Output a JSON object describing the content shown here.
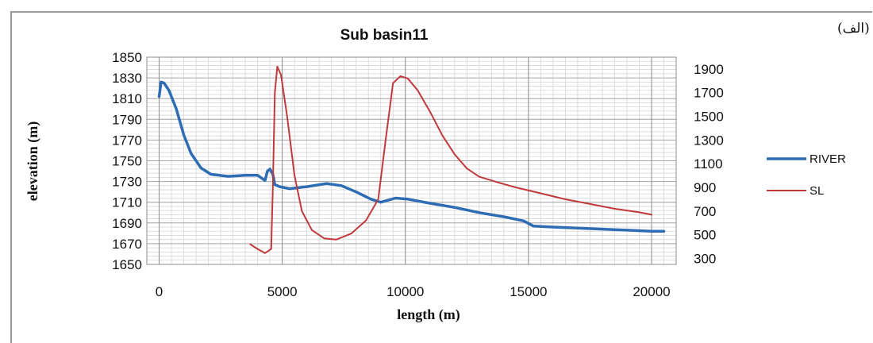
{
  "corner_label": "(الف)",
  "chart_data": {
    "type": "line",
    "title": "Sub basin11",
    "xlabel": "length (m)",
    "ylabel": "elevation (m)",
    "x_ticks": [
      0,
      5000,
      10000,
      15000,
      20000
    ],
    "xlim": [
      -500,
      21000
    ],
    "ylim": [
      1650,
      1850
    ],
    "y_ticks": [
      1650,
      1670,
      1690,
      1710,
      1730,
      1750,
      1770,
      1790,
      1810,
      1830,
      1850
    ],
    "y2lim": [
      250,
      2000
    ],
    "y2_ticks": [
      300,
      500,
      700,
      900,
      1100,
      1300,
      1500,
      1700,
      1900
    ],
    "grid": true,
    "legend": "right",
    "series": [
      {
        "name": "RIVER",
        "axis": "left",
        "color": "#2e6db4",
        "points": [
          [
            0,
            1812
          ],
          [
            80,
            1826
          ],
          [
            200,
            1825
          ],
          [
            400,
            1818
          ],
          [
            700,
            1800
          ],
          [
            1000,
            1775
          ],
          [
            1300,
            1757
          ],
          [
            1700,
            1743
          ],
          [
            2100,
            1737
          ],
          [
            2800,
            1735
          ],
          [
            3500,
            1736
          ],
          [
            4000,
            1736
          ],
          [
            4300,
            1731
          ],
          [
            4400,
            1740
          ],
          [
            4500,
            1742
          ],
          [
            4620,
            1737
          ],
          [
            4700,
            1727
          ],
          [
            4900,
            1725
          ],
          [
            5300,
            1723
          ],
          [
            6000,
            1725
          ],
          [
            6800,
            1728
          ],
          [
            7400,
            1726
          ],
          [
            8000,
            1720
          ],
          [
            8600,
            1713
          ],
          [
            9000,
            1710
          ],
          [
            9600,
            1714
          ],
          [
            10100,
            1713
          ],
          [
            11000,
            1709
          ],
          [
            12000,
            1705
          ],
          [
            13000,
            1700
          ],
          [
            14000,
            1696
          ],
          [
            14800,
            1692
          ],
          [
            15200,
            1687
          ],
          [
            16000,
            1686
          ],
          [
            17000,
            1685
          ],
          [
            18000,
            1684
          ],
          [
            19000,
            1683
          ],
          [
            20000,
            1682
          ],
          [
            20500,
            1682
          ]
        ]
      },
      {
        "name": "SL",
        "axis": "right",
        "color": "#c0393b",
        "points": [
          [
            3700,
            420
          ],
          [
            4000,
            380
          ],
          [
            4300,
            345
          ],
          [
            4550,
            380
          ],
          [
            4620,
            900
          ],
          [
            4700,
            1700
          ],
          [
            4800,
            1920
          ],
          [
            4950,
            1850
          ],
          [
            5200,
            1500
          ],
          [
            5500,
            1000
          ],
          [
            5800,
            700
          ],
          [
            6200,
            540
          ],
          [
            6700,
            470
          ],
          [
            7200,
            460
          ],
          [
            7800,
            510
          ],
          [
            8400,
            620
          ],
          [
            8900,
            800
          ],
          [
            9200,
            1300
          ],
          [
            9500,
            1780
          ],
          [
            9800,
            1840
          ],
          [
            10100,
            1820
          ],
          [
            10500,
            1720
          ],
          [
            11000,
            1540
          ],
          [
            11500,
            1340
          ],
          [
            12000,
            1180
          ],
          [
            12500,
            1060
          ],
          [
            13000,
            990
          ],
          [
            13800,
            940
          ],
          [
            14500,
            900
          ],
          [
            15500,
            850
          ],
          [
            16500,
            800
          ],
          [
            17500,
            760
          ],
          [
            18500,
            720
          ],
          [
            19500,
            690
          ],
          [
            20000,
            670
          ]
        ]
      }
    ]
  }
}
